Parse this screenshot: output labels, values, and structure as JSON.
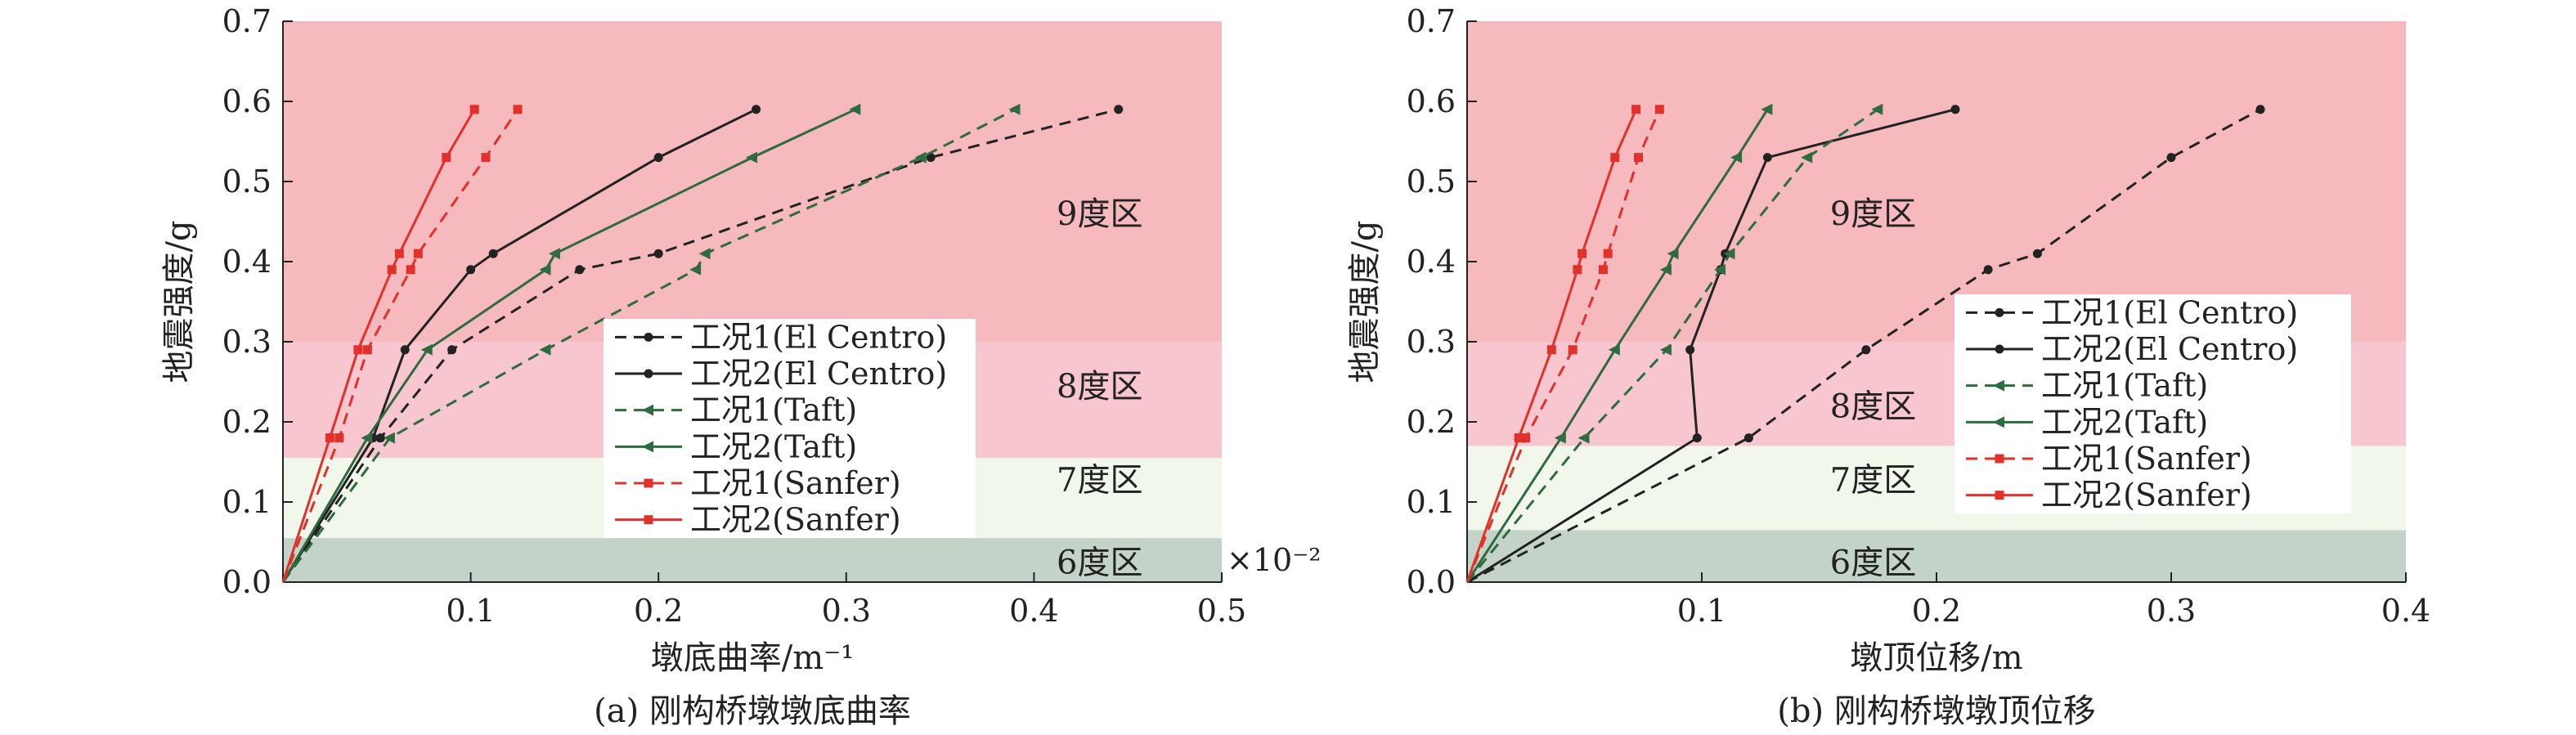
{
  "chart_data": [
    {
      "type": "line",
      "caption": "(a) 刚构桥墩墩底曲率",
      "xlabel": "墩底曲率/m⁻¹",
      "ylabel": "地震强度/g",
      "x_multiplier": "×10⁻²",
      "xlim": [
        0,
        0.5
      ],
      "ylim": [
        0,
        0.7
      ],
      "x_ticks": [
        0.1,
        0.2,
        0.3,
        0.4,
        0.5
      ],
      "x_tick_labels": [
        "0.1",
        "0.2",
        "0.3",
        "0.4",
        "0.5"
      ],
      "y_ticks": [
        0,
        0.1,
        0.2,
        0.3,
        0.4,
        0.5,
        0.6,
        0.7
      ],
      "y_tick_labels": [
        "0.0",
        "0.1",
        "0.2",
        "0.3",
        "0.4",
        "0.5",
        "0.6",
        "0.7"
      ],
      "zones": [
        {
          "label": "6度区",
          "from": 0,
          "to": 0.055,
          "color": "#c3d3c8"
        },
        {
          "label": "7度区",
          "from": 0.055,
          "to": 0.155,
          "color": "#f2f7ec"
        },
        {
          "label": "8度区",
          "from": 0.155,
          "to": 0.3,
          "color": "#f7c6cf"
        },
        {
          "label": "9度区",
          "from": 0.3,
          "to": 0.7,
          "color": "#f6b9bd"
        }
      ],
      "zone_label_x": 0.435,
      "zone_label_y": [
        0.025,
        0.128,
        0.245,
        0.46
      ],
      "legend_position": "center",
      "series": [
        {
          "name": "工况1(El Centro)",
          "color": "#222222",
          "dash": "dashed",
          "marker": "circle",
          "x": [
            0,
            0.052,
            0.09,
            0.158,
            0.2,
            0.345,
            0.445
          ],
          "y": [
            0,
            0.18,
            0.29,
            0.39,
            0.41,
            0.53,
            0.59
          ]
        },
        {
          "name": "工况2(El Centro)",
          "color": "#222222",
          "dash": "solid",
          "marker": "circle",
          "x": [
            0,
            0.048,
            0.065,
            0.1,
            0.112,
            0.2,
            0.252
          ],
          "y": [
            0,
            0.18,
            0.29,
            0.39,
            0.41,
            0.53,
            0.59
          ]
        },
        {
          "name": "工况1(Taft)",
          "color": "#2e6b3e",
          "dash": "dashed",
          "marker": "triangle",
          "x": [
            0,
            0.057,
            0.14,
            0.22,
            0.225,
            0.34,
            0.39
          ],
          "y": [
            0,
            0.18,
            0.29,
            0.39,
            0.41,
            0.53,
            0.59
          ]
        },
        {
          "name": "工况2(Taft)",
          "color": "#2e6b3e",
          "dash": "solid",
          "marker": "triangle",
          "x": [
            0,
            0.045,
            0.077,
            0.14,
            0.145,
            0.25,
            0.305
          ],
          "y": [
            0,
            0.18,
            0.29,
            0.39,
            0.41,
            0.53,
            0.59
          ]
        },
        {
          "name": "工况1(Sanfer)",
          "color": "#e0312b",
          "dash": "dashed",
          "marker": "square",
          "x": [
            0,
            0.03,
            0.045,
            0.068,
            0.072,
            0.108,
            0.125
          ],
          "y": [
            0,
            0.18,
            0.29,
            0.39,
            0.41,
            0.53,
            0.59
          ]
        },
        {
          "name": "工况2(Sanfer)",
          "color": "#e0312b",
          "dash": "solid",
          "marker": "square",
          "x": [
            0,
            0.025,
            0.04,
            0.058,
            0.062,
            0.087,
            0.102
          ],
          "y": [
            0,
            0.18,
            0.29,
            0.39,
            0.41,
            0.53,
            0.59
          ]
        }
      ]
    },
    {
      "type": "line",
      "caption": "(b) 刚构桥墩墩顶位移",
      "xlabel": "墩顶位移/m",
      "ylabel": "地震强度/g",
      "x_multiplier": "",
      "xlim": [
        0,
        0.4
      ],
      "ylim": [
        0,
        0.7
      ],
      "x_ticks": [
        0.1,
        0.2,
        0.3,
        0.4
      ],
      "x_tick_labels": [
        "0.1",
        "0.2",
        "0.3",
        "0.4"
      ],
      "y_ticks": [
        0,
        0.1,
        0.2,
        0.3,
        0.4,
        0.5,
        0.6,
        0.7
      ],
      "y_tick_labels": [
        "0.0",
        "0.1",
        "0.2",
        "0.3",
        "0.4",
        "0.5",
        "0.6",
        "0.7"
      ],
      "zones": [
        {
          "label": "6度区",
          "from": 0,
          "to": 0.065,
          "color": "#c3d3c8"
        },
        {
          "label": "7度区",
          "from": 0.065,
          "to": 0.17,
          "color": "#f2f7ec"
        },
        {
          "label": "8度区",
          "from": 0.17,
          "to": 0.3,
          "color": "#f7c6cf"
        },
        {
          "label": "9度区",
          "from": 0.3,
          "to": 0.7,
          "color": "#f6b9bd"
        }
      ],
      "zone_label_x": 0.173,
      "zone_label_y": [
        0.025,
        0.128,
        0.22,
        0.46
      ],
      "legend_position": "right",
      "series": [
        {
          "name": "工况1(El Centro)",
          "color": "#222222",
          "dash": "dashed",
          "marker": "circle",
          "x": [
            0,
            0.12,
            0.17,
            0.222,
            0.243,
            0.3,
            0.338
          ],
          "y": [
            0,
            0.18,
            0.29,
            0.39,
            0.41,
            0.53,
            0.59
          ]
        },
        {
          "name": "工况2(El Centro)",
          "color": "#222222",
          "dash": "solid",
          "marker": "circle",
          "x": [
            0,
            0.098,
            0.095,
            0.108,
            0.11,
            0.128,
            0.208
          ],
          "y": [
            0,
            0.18,
            0.29,
            0.39,
            0.41,
            0.53,
            0.59
          ]
        },
        {
          "name": "工况1(Taft)",
          "color": "#2e6b3e",
          "dash": "dashed",
          "marker": "triangle",
          "x": [
            0,
            0.05,
            0.085,
            0.108,
            0.112,
            0.145,
            0.175
          ],
          "y": [
            0,
            0.18,
            0.29,
            0.39,
            0.41,
            0.53,
            0.59
          ]
        },
        {
          "name": "工况2(Taft)",
          "color": "#2e6b3e",
          "dash": "solid",
          "marker": "triangle",
          "x": [
            0,
            0.04,
            0.063,
            0.085,
            0.088,
            0.115,
            0.128
          ],
          "y": [
            0,
            0.18,
            0.29,
            0.39,
            0.41,
            0.53,
            0.59
          ]
        },
        {
          "name": "工况1(Sanfer)",
          "color": "#e0312b",
          "dash": "dashed",
          "marker": "square",
          "x": [
            0,
            0.025,
            0.045,
            0.058,
            0.06,
            0.073,
            0.082
          ],
          "y": [
            0,
            0.18,
            0.29,
            0.39,
            0.41,
            0.53,
            0.59
          ]
        },
        {
          "name": "工况2(Sanfer)",
          "color": "#e0312b",
          "dash": "solid",
          "marker": "square",
          "x": [
            0,
            0.022,
            0.036,
            0.047,
            0.049,
            0.063,
            0.072
          ],
          "y": [
            0,
            0.18,
            0.29,
            0.39,
            0.41,
            0.53,
            0.59
          ]
        }
      ]
    }
  ]
}
